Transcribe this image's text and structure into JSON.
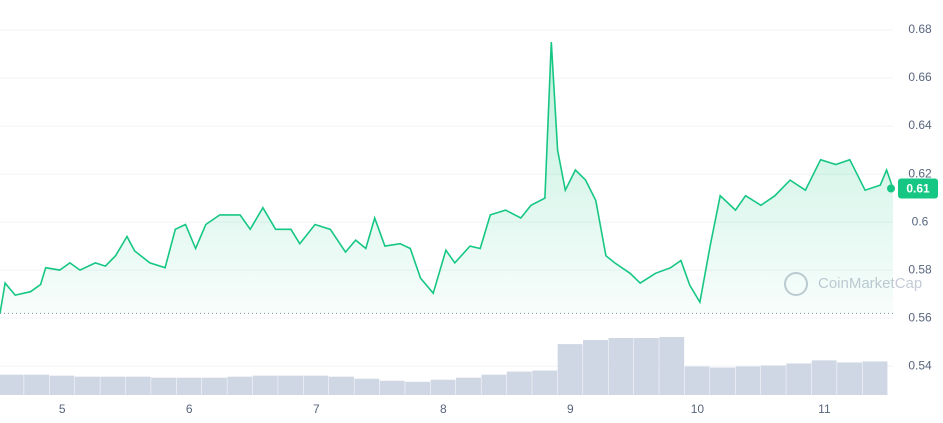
{
  "chart_data": {
    "type": "line",
    "watermark": "CoinMarketCap",
    "x": [
      4.51,
      4.55,
      4.63,
      4.75,
      4.83,
      4.87,
      4.98,
      5.06,
      5.14,
      5.26,
      5.34,
      5.42,
      5.51,
      5.57,
      5.69,
      5.81,
      5.89,
      5.97,
      6.05,
      6.13,
      6.24,
      6.4,
      6.48,
      6.58,
      6.68,
      6.8,
      6.87,
      6.99,
      7.11,
      7.23,
      7.31,
      7.39,
      7.46,
      7.54,
      7.66,
      7.74,
      7.82,
      7.92,
      8.02,
      8.09,
      8.21,
      8.29,
      8.37,
      8.49,
      8.61,
      8.69,
      8.8,
      8.85,
      8.9,
      8.96,
      9.04,
      9.12,
      9.2,
      9.28,
      9.35,
      9.47,
      9.55,
      9.67,
      9.79,
      9.87,
      9.94,
      10.02,
      10.1,
      10.18,
      10.3,
      10.38,
      10.5,
      10.61,
      10.73,
      10.85,
      10.97,
      11.09,
      11.2,
      11.32,
      11.44,
      11.49,
      11.54
    ],
    "series": [
      {
        "color": "#16c784",
        "values": [
          0.562,
          0.5746,
          0.5696,
          0.571,
          0.574,
          0.581,
          0.58,
          0.583,
          0.58,
          0.583,
          0.5817,
          0.586,
          0.594,
          0.588,
          0.583,
          0.581,
          0.597,
          0.599,
          0.589,
          0.599,
          0.603,
          0.603,
          0.597,
          0.606,
          0.597,
          0.597,
          0.591,
          0.599,
          0.597,
          0.5875,
          0.5925,
          0.589,
          0.6017,
          0.59,
          0.591,
          0.589,
          0.5767,
          0.5704,
          0.5883,
          0.583,
          0.59,
          0.589,
          0.603,
          0.605,
          0.6017,
          0.607,
          0.61,
          0.675,
          0.63,
          0.6133,
          0.6217,
          0.6175,
          0.609,
          0.586,
          0.583,
          0.5787,
          0.5746,
          0.5787,
          0.581,
          0.584,
          0.5737,
          0.5667,
          0.59,
          0.611,
          0.605,
          0.611,
          0.607,
          0.611,
          0.6175,
          0.6133,
          0.626,
          0.624,
          0.626,
          0.6133,
          0.6154,
          0.6217,
          0.614
        ]
      }
    ],
    "current": {
      "value": 0.614,
      "label": "0.61"
    },
    "baseline": 0.562,
    "volume": {
      "color": "#cfd6e4",
      "x": [
        4.6,
        4.8,
        5.0,
        5.2,
        5.4,
        5.6,
        5.8,
        6.0,
        6.2,
        6.4,
        6.6,
        6.8,
        7.0,
        7.2,
        7.4,
        7.6,
        7.8,
        8.0,
        8.2,
        8.4,
        8.6,
        8.8,
        9.0,
        9.2,
        9.4,
        9.6,
        9.8,
        10.0,
        10.2,
        10.4,
        10.6,
        10.8,
        11.0,
        11.2,
        11.4
      ],
      "values": [
        20,
        20,
        19,
        18,
        18,
        18,
        17,
        17,
        17,
        18,
        19,
        19,
        19,
        18,
        16,
        14,
        13,
        15,
        17,
        20,
        23,
        24,
        50,
        54,
        56,
        56,
        57,
        28,
        27,
        28,
        29,
        31,
        34,
        32,
        33
      ]
    },
    "xlim": [
      4.51,
      11.54
    ],
    "xticks": [
      5,
      6,
      7,
      8,
      9,
      10,
      11
    ],
    "ylim": [
      0.528,
      0.6925
    ],
    "yticks": [
      0.54,
      0.56,
      0.58,
      0.6,
      0.62,
      0.64,
      0.66,
      0.68
    ],
    "grid": true
  }
}
